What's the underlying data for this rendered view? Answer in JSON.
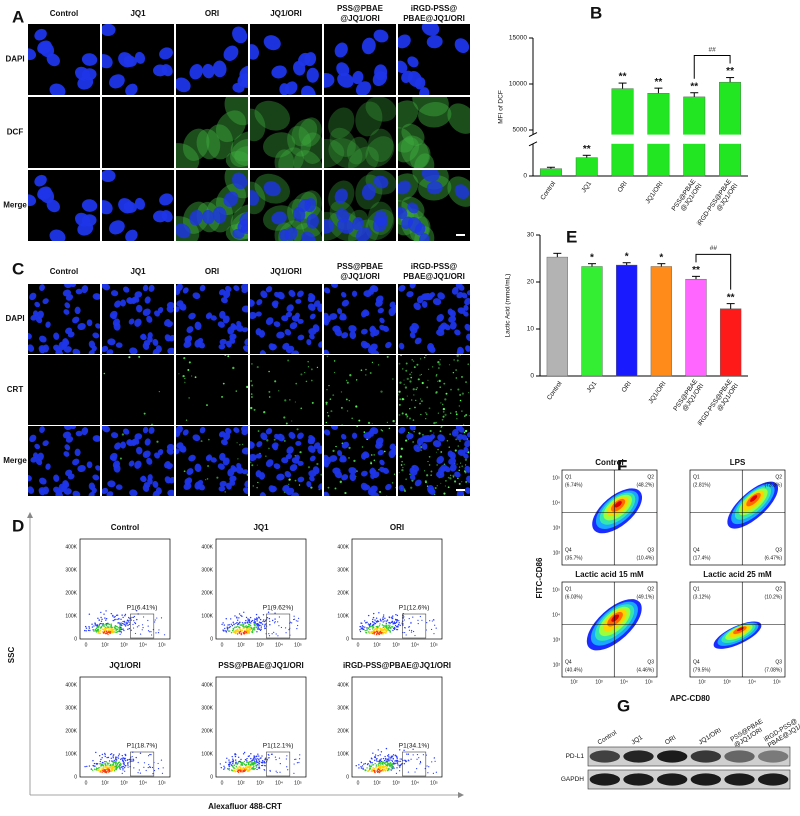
{
  "A": {
    "label": "A",
    "columns": [
      [
        "Control"
      ],
      [
        "JQ1"
      ],
      [
        "ORI"
      ],
      [
        "JQ1/ORI"
      ],
      [
        "PSS@PBAE",
        "@JQ1/ORI"
      ],
      [
        "iRGD-PSS@",
        "PBAE@JQ1/ORI"
      ]
    ],
    "rows": [
      "DAPI",
      "DCF",
      "Merge"
    ]
  },
  "C": {
    "label": "C",
    "columns": [
      [
        "Control"
      ],
      [
        "JQ1"
      ],
      [
        "ORI"
      ],
      [
        "JQ1/ORI"
      ],
      [
        "PSS@PBAE",
        "@JQ1/ORI"
      ],
      [
        "iRGD-PSS@",
        "PBAE@JQ1/ORI"
      ]
    ],
    "rows": [
      "DAPI",
      "CRT",
      "Merge"
    ]
  },
  "D": {
    "label": "D",
    "ylabel": "SSC",
    "xlabel": "Alexafluor 488-CRT",
    "yticks": [
      "0",
      "100K",
      "200K",
      "300K",
      "400K"
    ],
    "xticks": [
      "0",
      "10²",
      "10³",
      "10⁴",
      "10⁵"
    ],
    "plots": [
      {
        "title": "Control",
        "gate": "P1(6.41%)"
      },
      {
        "title": "JQ1",
        "gate": "P1(9.62%)"
      },
      {
        "title": "ORI",
        "gate": "P1(12.6%)"
      },
      {
        "title": "JQ1/ORI",
        "gate": "P1(18.7%)"
      },
      {
        "title": "PSS@PBAE@JQ1/ORI",
        "gate": "P1(12.1%)"
      },
      {
        "title": "iRGD-PSS@PBAE@JQ1/ORI",
        "gate": "P1(34.1%)"
      }
    ]
  },
  "F": {
    "label": "F",
    "ylabel": "FITC-CD86",
    "xlabel": "APC-CD80",
    "ticks": [
      "10²",
      "10³",
      "10⁴",
      "10⁵"
    ],
    "plots": [
      {
        "title": "Control",
        "quadrants": [
          {
            "name": "Q1",
            "value": "(6.74%)"
          },
          {
            "name": "Q2",
            "value": "(48.2%)"
          },
          {
            "name": "Q3",
            "value": "(10.4%)"
          },
          {
            "name": "Q4",
            "value": "(35.7%)"
          }
        ]
      },
      {
        "title": "LPS",
        "quadrants": [
          {
            "name": "Q1",
            "value": "(2.81%)"
          },
          {
            "name": "Q2",
            "value": "(73.3%)"
          },
          {
            "name": "Q3",
            "value": "(6.47%)"
          },
          {
            "name": "Q4",
            "value": "(17.4%)"
          }
        ]
      },
      {
        "title": "Lactic acid 15 mM",
        "quadrants": [
          {
            "name": "Q1",
            "value": "(6.03%)"
          },
          {
            "name": "Q2",
            "value": "(49.1%)"
          },
          {
            "name": "Q3",
            "value": "(4.46%)"
          },
          {
            "name": "Q4",
            "value": "(40.4%)"
          }
        ]
      },
      {
        "title": "Lactic acid 25 mM",
        "quadrants": [
          {
            "name": "Q1",
            "value": "(3.12%)"
          },
          {
            "name": "Q2",
            "value": "(10.2%)"
          },
          {
            "name": "Q3",
            "value": "(7.08%)"
          },
          {
            "name": "Q4",
            "value": "(79.5%)"
          }
        ]
      }
    ]
  },
  "G": {
    "label": "G",
    "columns": [
      [
        "Control"
      ],
      [
        "JQ1"
      ],
      [
        "ORI"
      ],
      [
        "JQ1/ORI"
      ],
      [
        "PSS@PBAE",
        "@JQ1/ORI"
      ],
      [
        "iRGD-PSS@",
        "PBAE@JQ1/ORI"
      ]
    ],
    "rows": [
      "PD-L1",
      "GAPDH"
    ]
  },
  "chart_data": [
    {
      "type": "bar",
      "label": "B",
      "ylabel": "MFI of DCF",
      "categories": [
        [
          "Control"
        ],
        [
          "JQ1"
        ],
        [
          "ORI"
        ],
        [
          "JQ1/ORI"
        ],
        [
          "PSS@PBAE",
          "@JQ1/ORI"
        ],
        [
          "iRGD-PSS@PBAE",
          "@JQ1/ORI"
        ]
      ],
      "values": [
        800,
        2000,
        9500,
        9000,
        8600,
        10200
      ],
      "errors": [
        150,
        250,
        600,
        550,
        450,
        500
      ],
      "color": "#22e622",
      "ylim": [
        0,
        15000
      ],
      "yticks": [
        0,
        5000,
        10000,
        15000
      ],
      "y_break": [
        3500,
        4500
      ],
      "significance": [
        null,
        "**",
        "**",
        "**",
        "**",
        "**"
      ],
      "comparison": {
        "text": "##",
        "between": [
          4,
          5
        ]
      }
    },
    {
      "type": "bar",
      "label": "E",
      "ylabel": "Lactic Acid (mmol/mL)",
      "categories": [
        [
          "Control"
        ],
        [
          "JQ1"
        ],
        [
          "ORI"
        ],
        [
          "JQ1/ORI"
        ],
        [
          "PSS@PBAE",
          "@JQ1/ORI"
        ],
        [
          "iRGD-PSS@PBAE",
          "@JQ1/ORI"
        ]
      ],
      "values": [
        25.3,
        23.3,
        23.6,
        23.3,
        20.6,
        14.3
      ],
      "errors": [
        0.8,
        0.6,
        0.5,
        0.6,
        0.6,
        1.1
      ],
      "colors": [
        "#b3b3b3",
        "#33ee33",
        "#1a1aff",
        "#ff8c1a",
        "#ff66ff",
        "#ff1a1a"
      ],
      "ylim": [
        0,
        30
      ],
      "yticks": [
        0,
        10,
        20,
        30
      ],
      "significance": [
        null,
        "*",
        "*",
        "*",
        "**",
        "**"
      ],
      "comparison": {
        "text": "##",
        "between": [
          4,
          5
        ]
      }
    }
  ]
}
